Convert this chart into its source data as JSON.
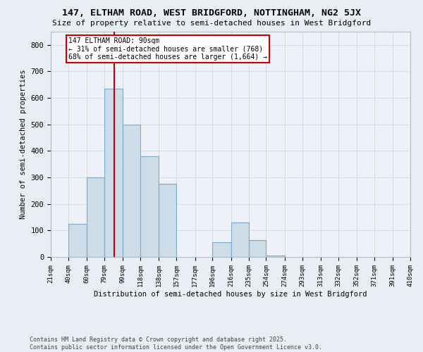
{
  "title": "147, ELTHAM ROAD, WEST BRIDGFORD, NOTTINGHAM, NG2 5JX",
  "subtitle": "Size of property relative to semi-detached houses in West Bridgford",
  "xlabel": "Distribution of semi-detached houses by size in West Bridgford",
  "ylabel": "Number of semi-detached properties",
  "bin_labels": [
    "21sqm",
    "40sqm",
    "60sqm",
    "79sqm",
    "99sqm",
    "118sqm",
    "138sqm",
    "157sqm",
    "177sqm",
    "196sqm",
    "216sqm",
    "235sqm",
    "254sqm",
    "274sqm",
    "293sqm",
    "313sqm",
    "332sqm",
    "352sqm",
    "371sqm",
    "391sqm",
    "410sqm"
  ],
  "bin_edges": [
    21,
    40,
    60,
    79,
    99,
    118,
    138,
    157,
    177,
    196,
    216,
    235,
    254,
    274,
    293,
    313,
    332,
    352,
    371,
    391,
    410
  ],
  "bar_heights": [
    0,
    125,
    300,
    635,
    500,
    380,
    275,
    0,
    0,
    55,
    130,
    65,
    5,
    0,
    0,
    0,
    0,
    0,
    0,
    0
  ],
  "bar_color": "#ccdce8",
  "bar_edge_color": "#7aaac8",
  "grid_color": "#d0d8e8",
  "property_size": 90,
  "vline_color": "#cc0000",
  "annotation_text": "147 ELTHAM ROAD: 90sqm\n← 31% of semi-detached houses are smaller (768)\n68% of semi-detached houses are larger (1,664) →",
  "annotation_box_color": "white",
  "annotation_box_edge": "#cc0000",
  "ylim": [
    0,
    850
  ],
  "yticks": [
    0,
    100,
    200,
    300,
    400,
    500,
    600,
    700,
    800
  ],
  "footer_text": "Contains HM Land Registry data © Crown copyright and database right 2025.\nContains public sector information licensed under the Open Government Licence v3.0.",
  "bg_color": "#e8eef4",
  "plot_bg_color": "#eef2f8"
}
